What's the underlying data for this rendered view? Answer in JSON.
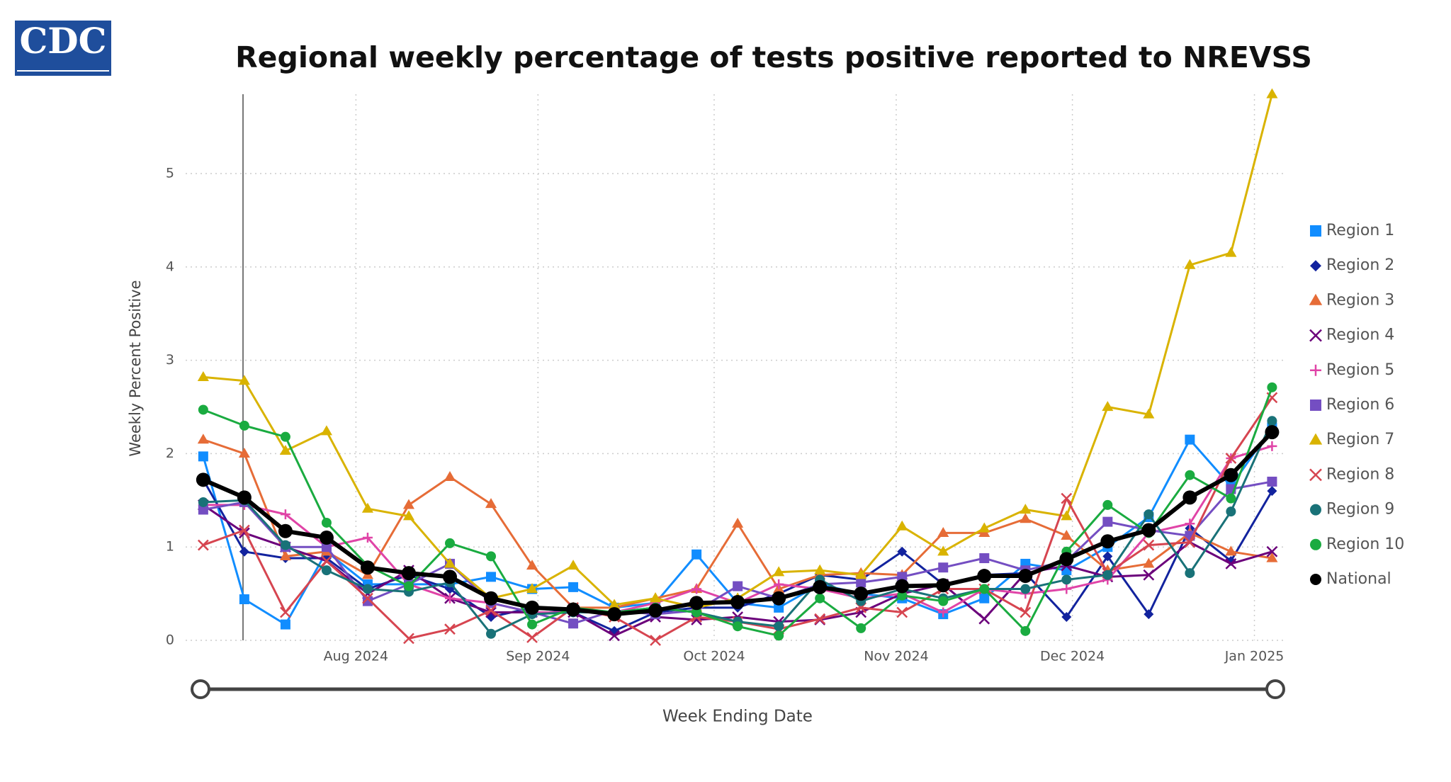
{
  "logo": "CDC",
  "chart_data": {
    "type": "line",
    "title": "Regional weekly percentage of tests positive reported to NREVSS",
    "x_label": "Week Ending Date",
    "y_label": "Weekly Percent Positive",
    "x": [
      "2024-07-06",
      "2024-07-13",
      "2024-07-20",
      "2024-07-27",
      "2024-08-03",
      "2024-08-10",
      "2024-08-17",
      "2024-08-24",
      "2024-08-31",
      "2024-09-07",
      "2024-09-14",
      "2024-09-21",
      "2024-09-28",
      "2024-10-05",
      "2024-10-12",
      "2024-10-19",
      "2024-10-26",
      "2024-11-02",
      "2024-11-09",
      "2024-11-16",
      "2024-11-23",
      "2024-11-30",
      "2024-12-07",
      "2024-12-14",
      "2024-12-21",
      "2024-12-28",
      "2025-01-04"
    ],
    "xlim": [
      "2024-07-03",
      "2025-01-06"
    ],
    "xticks": [
      {
        "value": "2024-08-01",
        "label": "Aug 2024"
      },
      {
        "value": "2024-09-01",
        "label": "Sep 2024"
      },
      {
        "value": "2024-10-01",
        "label": "Oct 2024"
      },
      {
        "value": "2024-11-01",
        "label": "Nov 2024"
      },
      {
        "value": "2024-12-01",
        "label": "Dec 2024"
      },
      {
        "value": "2025-01-01",
        "label": "Jan 2025"
      }
    ],
    "ylim": [
      0,
      5.85
    ],
    "yticks": [
      0,
      1,
      2,
      3,
      4,
      5
    ],
    "grid": true,
    "legend": "right",
    "series": [
      {
        "name": "Region 1",
        "color": "#118dff",
        "marker": "square",
        "values": [
          1.97,
          0.44,
          0.17,
          0.95,
          0.6,
          0.6,
          0.6,
          0.68,
          0.55,
          0.57,
          0.35,
          0.4,
          0.92,
          0.4,
          0.35,
          0.6,
          0.5,
          0.45,
          0.28,
          0.45,
          0.82,
          0.75,
          1.0,
          1.32,
          2.15,
          1.65,
          2.28
        ]
      },
      {
        "name": "Region 2",
        "color": "#12239e",
        "marker": "diamond",
        "values": [
          1.72,
          0.95,
          0.88,
          0.88,
          0.55,
          0.7,
          0.55,
          0.25,
          0.35,
          0.3,
          0.1,
          0.3,
          0.35,
          0.35,
          0.5,
          0.7,
          0.65,
          0.95,
          0.6,
          0.7,
          0.72,
          0.25,
          0.9,
          0.28,
          1.2,
          0.85,
          1.6
        ]
      },
      {
        "name": "Region 3",
        "color": "#e66c37",
        "marker": "triangle",
        "values": [
          2.15,
          2.0,
          0.9,
          0.95,
          0.7,
          1.45,
          1.75,
          1.46,
          0.8,
          0.35,
          0.35,
          0.45,
          0.55,
          1.25,
          0.55,
          0.7,
          0.72,
          0.7,
          1.15,
          1.15,
          1.3,
          1.12,
          0.75,
          0.82,
          1.15,
          0.95,
          0.88
        ]
      },
      {
        "name": "Region 4",
        "color": "#6b007b",
        "marker": "x",
        "values": [
          1.45,
          1.15,
          1.0,
          0.85,
          0.5,
          0.75,
          0.45,
          0.3,
          0.3,
          0.3,
          0.05,
          0.25,
          0.22,
          0.25,
          0.2,
          0.22,
          0.3,
          0.5,
          0.6,
          0.23,
          0.72,
          0.8,
          0.68,
          0.7,
          1.05,
          0.82,
          0.95
        ]
      },
      {
        "name": "Region 5",
        "color": "#e044a7",
        "marker": "plus",
        "values": [
          1.45,
          1.45,
          1.35,
          1.0,
          1.1,
          0.6,
          0.45,
          0.4,
          0.3,
          0.3,
          0.3,
          0.4,
          0.55,
          0.4,
          0.6,
          0.55,
          0.45,
          0.5,
          0.3,
          0.55,
          0.5,
          0.55,
          0.65,
          1.15,
          1.25,
          1.95,
          2.08
        ]
      },
      {
        "name": "Region 6",
        "color": "#744ec2",
        "marker": "square",
        "values": [
          1.4,
          1.48,
          1.0,
          1.0,
          0.42,
          0.6,
          0.82,
          0.4,
          0.3,
          0.18,
          0.32,
          0.28,
          0.32,
          0.58,
          0.45,
          0.6,
          0.62,
          0.68,
          0.78,
          0.88,
          0.75,
          0.85,
          1.27,
          1.18,
          1.12,
          1.62,
          1.7
        ]
      },
      {
        "name": "Region 7",
        "color": "#d9b300",
        "marker": "triangle",
        "values": [
          2.82,
          2.78,
          2.03,
          2.24,
          1.41,
          1.33,
          0.82,
          0.45,
          0.55,
          0.8,
          0.38,
          0.45,
          0.35,
          0.45,
          0.73,
          0.75,
          0.7,
          1.22,
          0.95,
          1.2,
          1.4,
          1.33,
          2.5,
          2.42,
          4.02,
          4.15,
          5.85
        ]
      },
      {
        "name": "Region 8",
        "color": "#d64550",
        "marker": "x",
        "values": [
          1.02,
          1.18,
          0.3,
          0.85,
          0.45,
          0.02,
          0.12,
          0.32,
          0.03,
          0.35,
          0.25,
          0.0,
          0.25,
          0.2,
          0.12,
          0.23,
          0.35,
          0.3,
          0.55,
          0.55,
          0.3,
          1.52,
          0.72,
          1.02,
          1.05,
          1.95,
          2.6
        ]
      },
      {
        "name": "Region 9",
        "color": "#197278",
        "marker": "circle",
        "values": [
          1.48,
          1.5,
          1.02,
          0.75,
          0.55,
          0.52,
          0.62,
          0.07,
          0.28,
          0.3,
          0.3,
          0.35,
          0.3,
          0.2,
          0.15,
          0.65,
          0.42,
          0.55,
          0.45,
          0.55,
          0.55,
          0.65,
          0.7,
          1.35,
          0.72,
          1.38,
          2.35
        ]
      },
      {
        "name": "Region 10",
        "color": "#1aab40",
        "marker": "circle",
        "values": [
          2.47,
          2.3,
          2.18,
          1.26,
          0.8,
          0.58,
          1.04,
          0.9,
          0.17,
          0.35,
          0.3,
          0.35,
          0.3,
          0.15,
          0.05,
          0.45,
          0.13,
          0.48,
          0.42,
          0.55,
          0.1,
          0.95,
          1.45,
          1.15,
          1.77,
          1.52,
          2.71
        ]
      },
      {
        "name": "National",
        "color": "#000000",
        "marker": "circle",
        "values": [
          1.72,
          1.53,
          1.17,
          1.1,
          0.78,
          0.72,
          0.68,
          0.45,
          0.35,
          0.33,
          0.28,
          0.32,
          0.4,
          0.41,
          0.45,
          0.57,
          0.5,
          0.58,
          0.59,
          0.69,
          0.69,
          0.87,
          1.06,
          1.18,
          1.53,
          1.77,
          2.23
        ]
      }
    ]
  }
}
